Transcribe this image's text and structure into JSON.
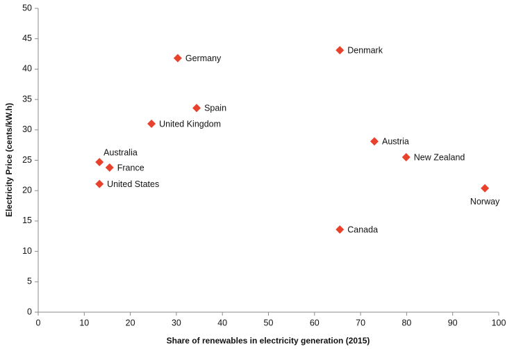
{
  "chart_data": {
    "type": "scatter",
    "x_label": "Share of renewables in electricity generation (2015)",
    "y_label": "Electricity Price (cents/kW.h)",
    "labels": [
      "Australia",
      "France",
      "United States",
      "United Kingdom",
      "Germany",
      "Spain",
      "Denmark",
      "Austria",
      "New Zealand",
      "Norway",
      "Canada"
    ],
    "x": [
      13.3,
      15.5,
      13.3,
      24.6,
      30.3,
      34.4,
      65.5,
      73.0,
      79.9,
      97.0,
      65.5
    ],
    "values": [
      24.7,
      23.8,
      21.1,
      31.0,
      41.8,
      33.6,
      43.1,
      28.1,
      25.5,
      20.4,
      13.6
    ],
    "color": "#e8412c",
    "xlim": [
      0,
      100
    ],
    "xticks": [
      0,
      10,
      20,
      30,
      40,
      50,
      60,
      70,
      80,
      90,
      100
    ],
    "ylim": [
      0,
      50
    ],
    "yticks": [
      0,
      5,
      10,
      15,
      20,
      25,
      30,
      35,
      40,
      45,
      50
    ],
    "grid": false
  }
}
